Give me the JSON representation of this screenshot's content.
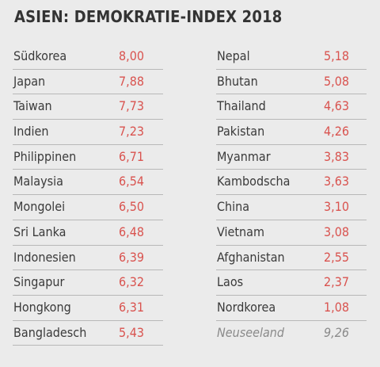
{
  "title": "ASIEN: DEMOKRATIE-INDEX 2018",
  "chart_data": {
    "type": "table",
    "title": "ASIEN: DEMOKRATIE-INDEX 2018",
    "columns": [
      {
        "rows": [
          {
            "name": "Südkorea",
            "value": "8,00"
          },
          {
            "name": "Japan",
            "value": "7,88"
          },
          {
            "name": "Taiwan",
            "value": "7,73"
          },
          {
            "name": "Indien",
            "value": "7,23"
          },
          {
            "name": "Philippinen",
            "value": "6,71"
          },
          {
            "name": "Malaysia",
            "value": "6,54"
          },
          {
            "name": "Mongolei",
            "value": "6,50"
          },
          {
            "name": "Sri Lanka",
            "value": "6,48"
          },
          {
            "name": "Indonesien",
            "value": "6,39"
          },
          {
            "name": "Singapur",
            "value": "6,32"
          },
          {
            "name": "Hongkong",
            "value": "6,31"
          },
          {
            "name": "Bangladesch",
            "value": "5,43"
          }
        ]
      },
      {
        "rows": [
          {
            "name": "Nepal",
            "value": "5,18"
          },
          {
            "name": "Bhutan",
            "value": "5,08"
          },
          {
            "name": "Thailand",
            "value": "4,63"
          },
          {
            "name": "Pakistan",
            "value": "4,26"
          },
          {
            "name": "Myanmar",
            "value": "3,83"
          },
          {
            "name": "Kambodscha",
            "value": "3,63"
          },
          {
            "name": "China",
            "value": "3,10"
          },
          {
            "name": "Vietnam",
            "value": "3,08"
          },
          {
            "name": "Afghanistan",
            "value": "2,55"
          },
          {
            "name": "Laos",
            "value": "2,37"
          },
          {
            "name": "Nordkorea",
            "value": "1,08"
          }
        ],
        "extra": {
          "name": "Neuseeland",
          "value": "9,26"
        }
      }
    ]
  },
  "colors": {
    "background": "#ebebeb",
    "value": "#d9534f",
    "text": "#333333",
    "extra": "#8a8a8a"
  }
}
